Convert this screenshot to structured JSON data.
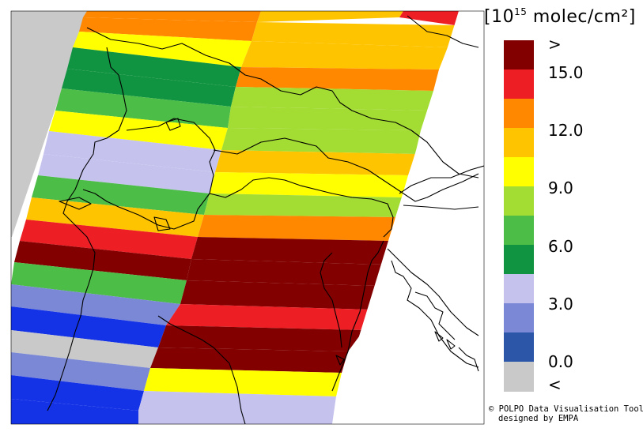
{
  "colorbar": {
    "unit_prefix": "[10",
    "unit_exponent": "15",
    "unit_suffix": " molec/cm²]",
    "over_label": ">",
    "under_label": "<",
    "tick_labels": [
      "15.0",
      "12.0",
      "9.0",
      "6.0",
      "3.0",
      "0.0"
    ],
    "colors": [
      "#820000",
      "#ed1e24",
      "#ff8800",
      "#ffc400",
      "#ffff00",
      "#a3dc32",
      "#4cbd46",
      "#119441",
      "#c5c3ee",
      "#7b88d6",
      "#2c56a7",
      "#c9c9c9"
    ]
  },
  "credit": {
    "line1": "© POLPO Data Visualisation Tool",
    "line2": "designed by EMPA"
  },
  "legend_bins": [
    {
      "label": ">",
      "color": "#820000"
    },
    {
      "range": [
        13.5,
        15.0
      ],
      "color": "#ed1e24"
    },
    {
      "range": [
        12.0,
        13.5
      ],
      "color": "#ff8800"
    },
    {
      "range": [
        10.5,
        12.0
      ],
      "color": "#ffc400"
    },
    {
      "range": [
        9.0,
        10.5
      ],
      "color": "#ffff00"
    },
    {
      "range": [
        7.5,
        9.0
      ],
      "color": "#a3dc32"
    },
    {
      "range": [
        6.0,
        7.5
      ],
      "color": "#4cbd46"
    },
    {
      "range": [
        4.5,
        6.0
      ],
      "color": "#119441"
    },
    {
      "range": [
        3.0,
        4.5
      ],
      "color": "#c5c3ee"
    },
    {
      "range": [
        1.5,
        3.0
      ],
      "color": "#7b88d6"
    },
    {
      "range": [
        0.0,
        1.5
      ],
      "color": "#2c56a7"
    },
    {
      "label": "<",
      "color": "#c9c9c9"
    }
  ]
}
